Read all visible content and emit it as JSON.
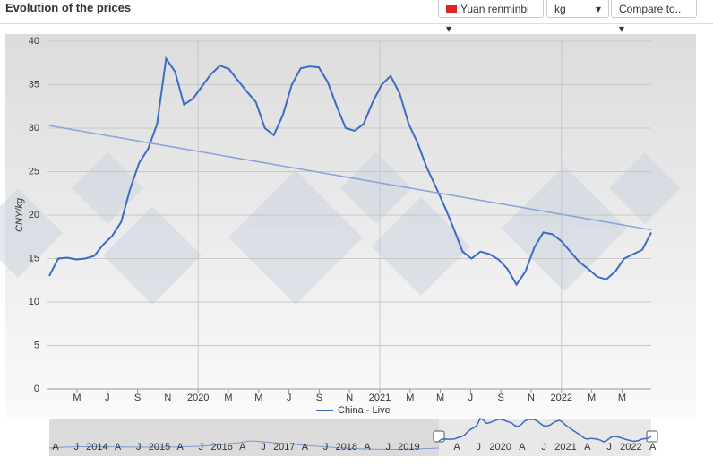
{
  "header": {
    "title": "Evolution of the prices",
    "currency": "Yuan renminbi",
    "unit": "kg",
    "compare": "Compare to.."
  },
  "chart_data": {
    "type": "line",
    "y_label": "CNY/kg",
    "x_tick_labels": [
      "M",
      "J",
      "S",
      "N",
      "2020",
      "M",
      "M",
      "J",
      "S",
      "N",
      "2021",
      "M",
      "M",
      "J",
      "S",
      "N",
      "2022",
      "M",
      "M"
    ],
    "ylim": [
      0,
      40
    ],
    "yticks": [
      0,
      5,
      10,
      15,
      20,
      25,
      30,
      35,
      40
    ],
    "grid": true,
    "series": [
      {
        "name": "China - Live",
        "color": "#3d6bc4",
        "values": [
          13,
          15,
          15.1,
          14.9,
          15,
          15.3,
          16.6,
          17.6,
          19.2,
          23,
          26,
          27.6,
          30.5,
          38,
          36.5,
          32.7,
          33.4,
          34.8,
          36.2,
          37.2,
          36.8,
          35.5,
          34.2,
          33,
          30,
          29.2,
          31.5,
          35,
          36.9,
          37.1,
          37,
          35.3,
          32.5,
          30,
          29.7,
          30.5,
          33,
          35,
          36,
          34,
          30.5,
          28.3,
          25.5,
          23.3,
          21,
          18.5,
          15.8,
          15,
          15.8,
          15.5,
          14.9,
          13.8,
          12,
          13.5,
          16.3,
          18,
          17.8,
          17,
          15.8,
          14.6,
          13.8,
          12.9,
          12.6,
          13.5,
          15,
          15.5,
          16,
          18
        ]
      }
    ],
    "trendline": {
      "start": 30.3,
      "end": 18.3,
      "color": "#8aa3db"
    },
    "navigator_labels": [
      "A",
      "J",
      "2014",
      "A",
      "J",
      "2015",
      "A",
      "J",
      "2016",
      "A",
      "J",
      "2017",
      "A",
      "J",
      "2018",
      "A",
      "J",
      "2019",
      "A",
      "J",
      "2020",
      "A",
      "J",
      "2021",
      "A",
      "J",
      "2022",
      "A"
    ]
  }
}
